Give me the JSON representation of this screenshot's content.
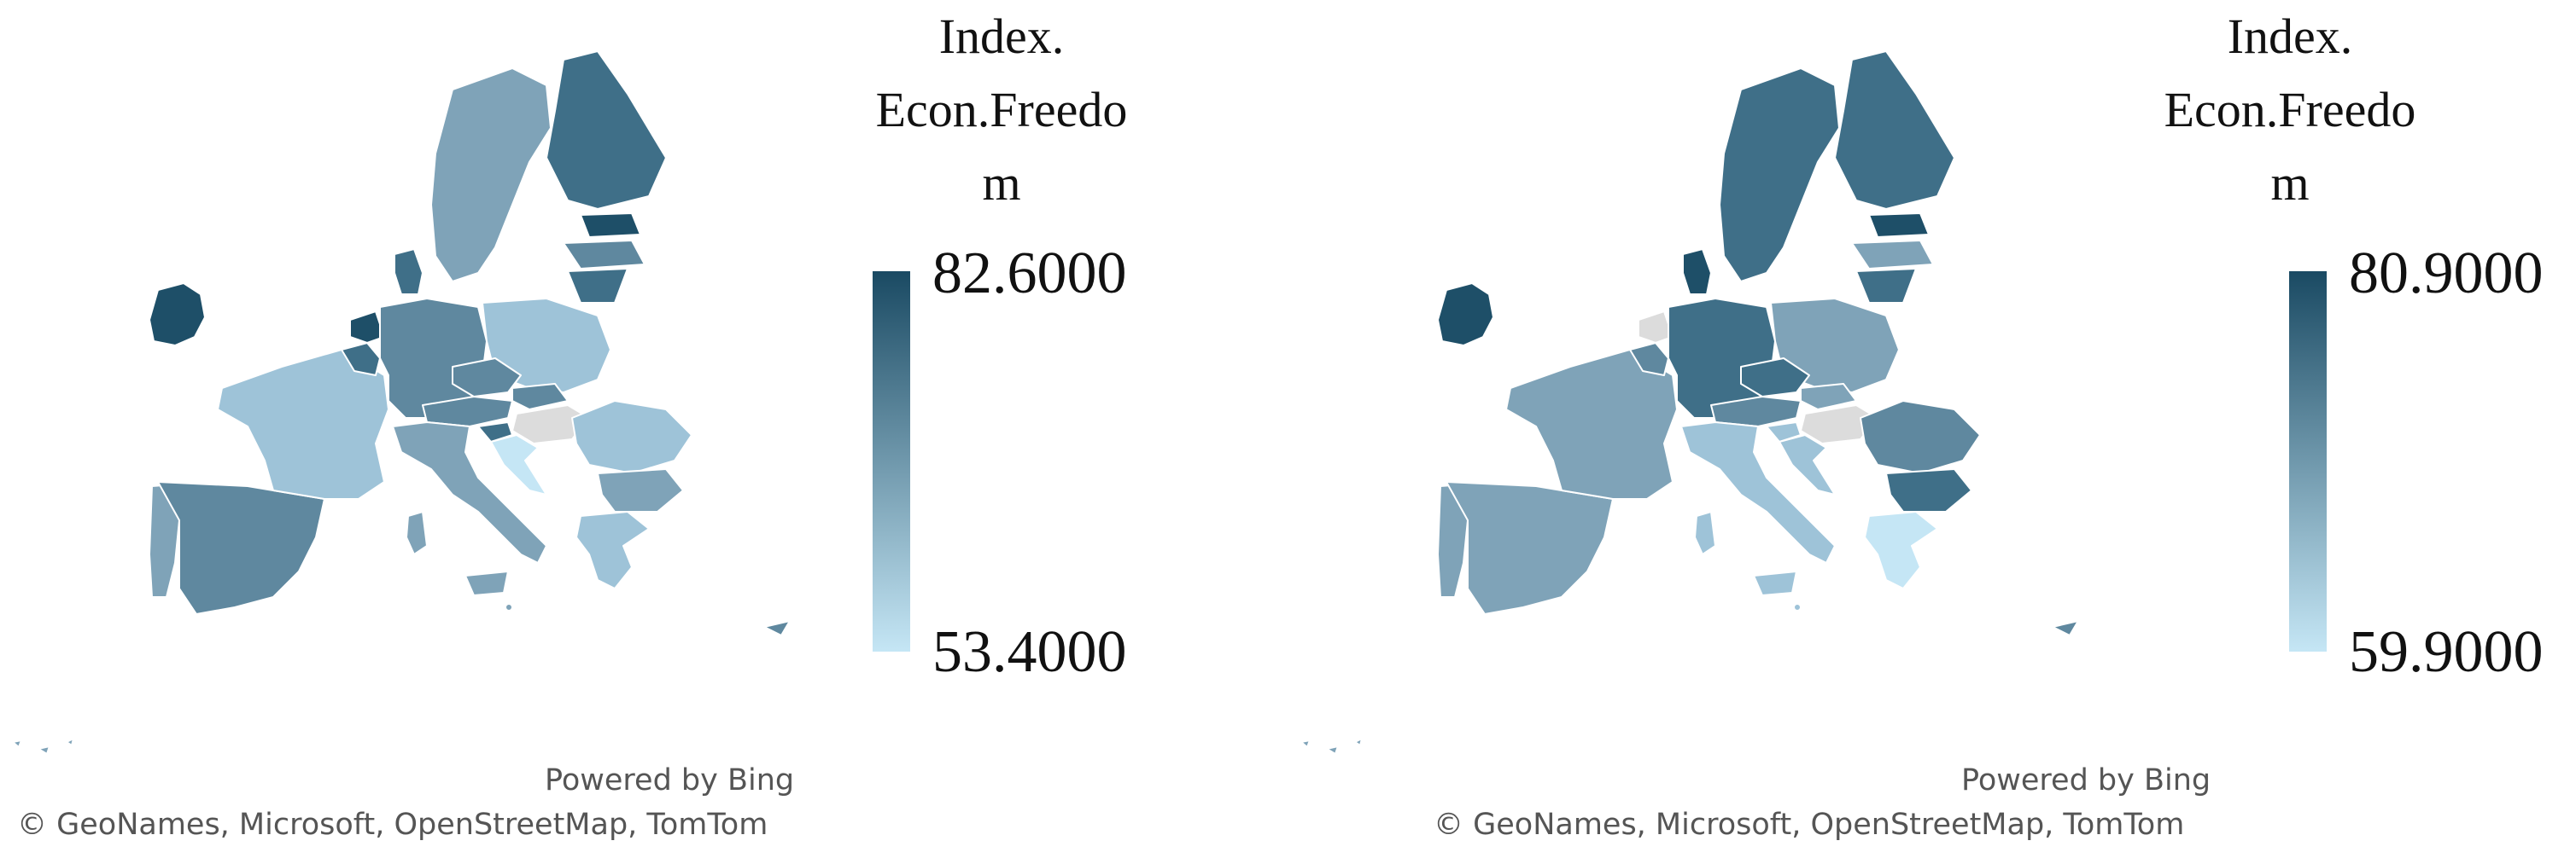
{
  "maps": [
    {
      "legend": {
        "title_lines": [
          "Index.",
          "Econ.Freedo",
          "m"
        ],
        "max_label": "82.6000",
        "min_label": "53.4000",
        "color_high": "#1a4a63",
        "color_low": "#c5e6f5"
      },
      "credits": {
        "powered": "Powered by Bing",
        "attribution": "© GeoNames, Microsoft, OpenStreetMap, TomTom"
      }
    },
    {
      "legend": {
        "title_lines": [
          "Index.",
          "Econ.Freedo",
          "m"
        ],
        "max_label": "80.9000",
        "min_label": "59.9000",
        "color_high": "#1a4a63",
        "color_low": "#c5e6f5"
      },
      "credits": {
        "powered": "Powered by Bing",
        "attribution": "© GeoNames, Microsoft, OpenStreetMap, TomTom"
      }
    }
  ],
  "colors": {
    "no_data": "#dcdcdc",
    "border": "#ffffff",
    "darkest": "#1e4f68",
    "dark": "#3f6f88",
    "mid_dark": "#5f889f",
    "mid": "#7fa3b8",
    "light": "#9ec3d8",
    "lightest": "#c5e6f5"
  }
}
